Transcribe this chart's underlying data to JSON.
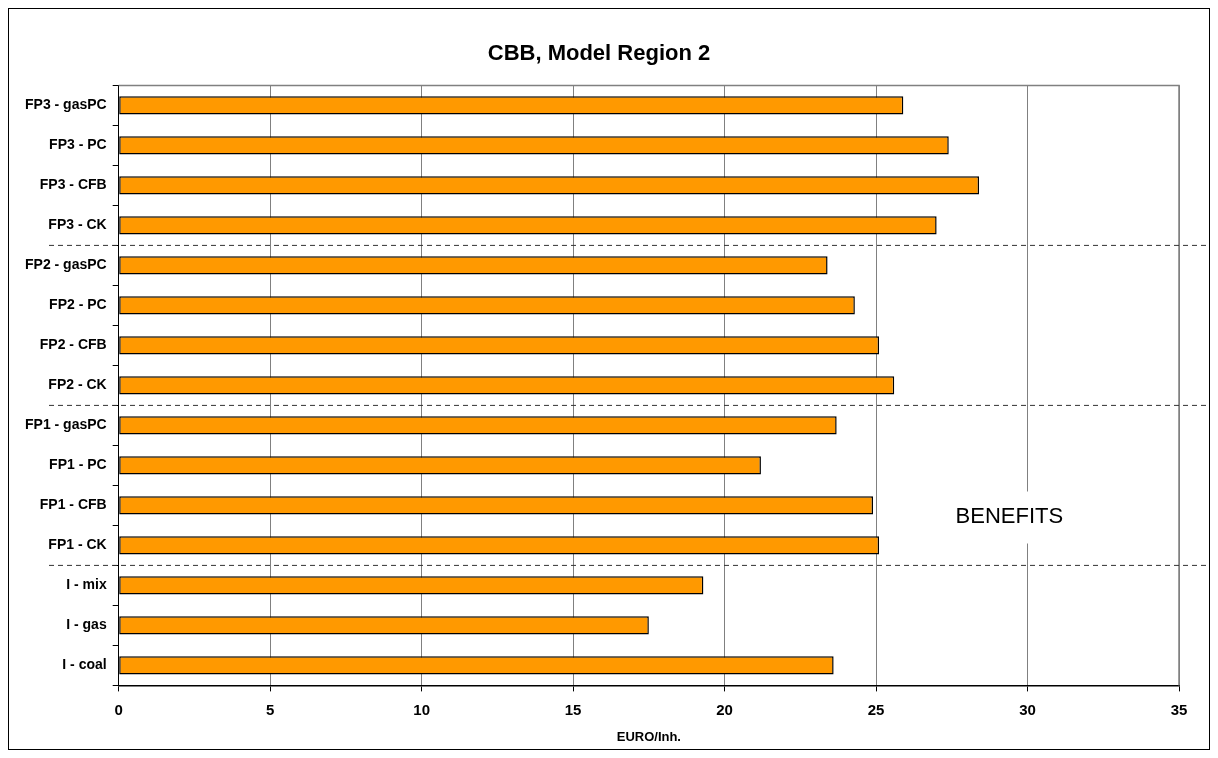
{
  "chart_data": {
    "type": "bar",
    "orientation": "horizontal",
    "title": "CBB, Model Region 2",
    "xlabel": "EURO/Inh.",
    "categories": [
      "FP3 - gasPC",
      "FP3 - PC",
      "FP3 - CFB",
      "FP3 - CK",
      "FP2 - gasPC",
      "FP2 - PC",
      "FP2 - CFB",
      "FP2 - CK",
      "FP1 - gasPC",
      "FP1 - PC",
      "FP1 - CFB",
      "FP1 - CK",
      "I - mix",
      "I - gas",
      "I - coal"
    ],
    "values": [
      25.9,
      27.4,
      28.4,
      27.0,
      23.4,
      24.3,
      25.1,
      25.6,
      23.7,
      21.2,
      24.9,
      25.1,
      19.3,
      17.5,
      23.6
    ],
    "color": "#ff9900",
    "xlim": [
      0,
      35
    ],
    "xticks": [
      0,
      5,
      10,
      15,
      20,
      25,
      30,
      35
    ],
    "grid": "x",
    "legend": false,
    "ref_lines": [
      {
        "axis": "y",
        "value": "FP3 - CK",
        "line_style": "dashed"
      },
      {
        "axis": "y",
        "value": "FP2 - CK",
        "line_style": "dashed"
      },
      {
        "axis": "y",
        "value": "FP1 - CK",
        "line_style": "dashed"
      }
    ],
    "annotations": [
      "BENEFITS"
    ]
  }
}
